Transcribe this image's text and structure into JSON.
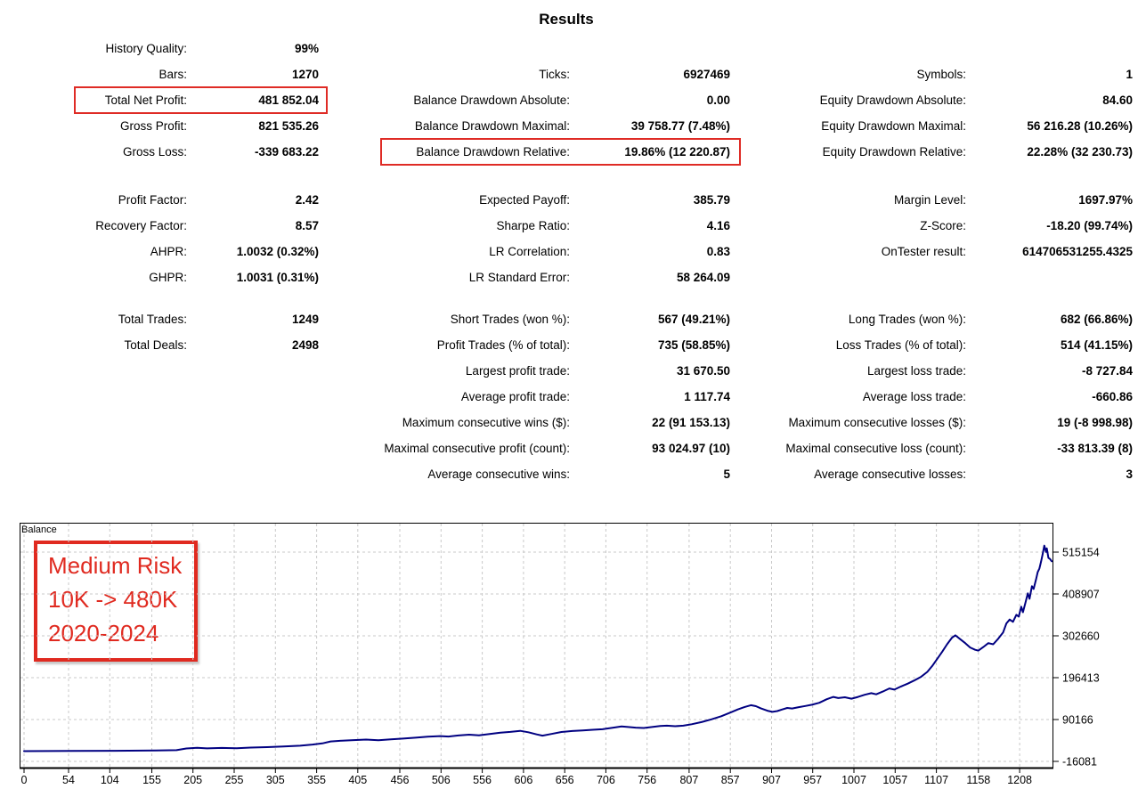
{
  "title": "Results",
  "accent_red": "#DF2B25",
  "stats": {
    "blocks": [
      [
        [
          {
            "label": "History Quality:",
            "value": "99%"
          },
          null,
          null
        ],
        [
          {
            "label": "Bars:",
            "value": "1270"
          },
          {
            "label": "Ticks:",
            "value": "6927469"
          },
          {
            "label": "Symbols:",
            "value": "1"
          }
        ],
        [
          {
            "label": "Total Net Profit:",
            "value": "481 852.04",
            "highlight": true
          },
          {
            "label": "Balance Drawdown Absolute:",
            "value": "0.00"
          },
          {
            "label": "Equity Drawdown Absolute:",
            "value": "84.60"
          }
        ],
        [
          {
            "label": "Gross Profit:",
            "value": "821 535.26"
          },
          {
            "label": "Balance Drawdown Maximal:",
            "value": "39 758.77 (7.48%)"
          },
          {
            "label": "Equity Drawdown Maximal:",
            "value": "56 216.28 (10.26%)"
          }
        ],
        [
          {
            "label": "Gross Loss:",
            "value": "-339 683.22"
          },
          {
            "label": "Balance Drawdown Relative:",
            "value": "19.86% (12 220.87)",
            "highlight": true
          },
          {
            "label": "Equity Drawdown Relative:",
            "value": "22.28% (32 230.73)"
          }
        ]
      ],
      [
        [
          {
            "label": "Profit Factor:",
            "value": "2.42"
          },
          {
            "label": "Expected Payoff:",
            "value": "385.79"
          },
          {
            "label": "Margin Level:",
            "value": "1697.97%"
          }
        ],
        [
          {
            "label": "Recovery Factor:",
            "value": "8.57"
          },
          {
            "label": "Sharpe Ratio:",
            "value": "4.16"
          },
          {
            "label": "Z-Score:",
            "value": "-18.20 (99.74%)"
          }
        ],
        [
          {
            "label": "AHPR:",
            "value": "1.0032 (0.32%)"
          },
          {
            "label": "LR Correlation:",
            "value": "0.83"
          },
          {
            "label": "OnTester result:",
            "value": "614706531255.4325"
          }
        ],
        [
          {
            "label": "GHPR:",
            "value": "1.0031 (0.31%)"
          },
          {
            "label": "LR Standard Error:",
            "value": "58 264.09"
          },
          null
        ]
      ],
      [
        [
          {
            "label": "Total Trades:",
            "value": "1249"
          },
          {
            "label": "Short Trades (won %):",
            "value": "567 (49.21%)"
          },
          {
            "label": "Long Trades (won %):",
            "value": "682 (66.86%)"
          }
        ],
        [
          {
            "label": "Total Deals:",
            "value": "2498"
          },
          {
            "label": "Profit Trades (% of total):",
            "value": "735 (58.85%)"
          },
          {
            "label": "Loss Trades (% of total):",
            "value": "514 (41.15%)"
          }
        ],
        [
          null,
          {
            "label": "Largest profit trade:",
            "value": "31 670.50"
          },
          {
            "label": "Largest loss trade:",
            "value": "-8 727.84"
          }
        ],
        [
          null,
          {
            "label": "Average profit trade:",
            "value": "1 117.74"
          },
          {
            "label": "Average loss trade:",
            "value": "-660.86"
          }
        ],
        [
          null,
          {
            "label": "Maximum consecutive wins ($):",
            "value": "22 (91 153.13)"
          },
          {
            "label": "Maximum consecutive losses ($):",
            "value": "19 (-8 998.98)"
          }
        ],
        [
          null,
          {
            "label": "Maximal consecutive profit (count):",
            "value": "93 024.97 (10)"
          },
          {
            "label": "Maximal consecutive loss (count):",
            "value": "-33 813.39 (8)"
          }
        ],
        [
          null,
          {
            "label": "Average consecutive wins:",
            "value": "5"
          },
          {
            "label": "Average consecutive losses:",
            "value": "3"
          }
        ]
      ]
    ]
  },
  "chart_data": {
    "type": "line",
    "title": "Balance",
    "xlabel": "",
    "ylabel": "",
    "grid": "dashed",
    "x_range": [
      0,
      1249
    ],
    "x_ticks": [
      0,
      54,
      104,
      155,
      205,
      255,
      305,
      355,
      405,
      456,
      506,
      556,
      606,
      656,
      706,
      756,
      807,
      857,
      907,
      957,
      1007,
      1057,
      1107,
      1158,
      1208
    ],
    "y_ticks": [
      515154,
      408907,
      302660,
      196413,
      90166,
      -16081
    ],
    "series": [
      {
        "name": "Balance",
        "color": "#000081",
        "points": [
          [
            0,
            10000
          ],
          [
            60,
            10300
          ],
          [
            110,
            10800
          ],
          [
            160,
            11600
          ],
          [
            185,
            12400
          ],
          [
            197,
            16800
          ],
          [
            210,
            18300
          ],
          [
            222,
            16900
          ],
          [
            240,
            18100
          ],
          [
            258,
            17300
          ],
          [
            275,
            18900
          ],
          [
            295,
            20000
          ],
          [
            315,
            21800
          ],
          [
            335,
            23800
          ],
          [
            350,
            26600
          ],
          [
            362,
            29600
          ],
          [
            372,
            34600
          ],
          [
            386,
            36600
          ],
          [
            400,
            37900
          ],
          [
            415,
            39200
          ],
          [
            430,
            37600
          ],
          [
            445,
            39700
          ],
          [
            460,
            41700
          ],
          [
            475,
            44100
          ],
          [
            490,
            46600
          ],
          [
            505,
            48100
          ],
          [
            515,
            47100
          ],
          [
            527,
            49700
          ],
          [
            540,
            51700
          ],
          [
            552,
            50100
          ],
          [
            565,
            53600
          ],
          [
            578,
            56600
          ],
          [
            590,
            58700
          ],
          [
            602,
            61500
          ],
          [
            612,
            57900
          ],
          [
            622,
            52400
          ],
          [
            629,
            49300
          ],
          [
            640,
            53600
          ],
          [
            652,
            58600
          ],
          [
            665,
            61100
          ],
          [
            678,
            62600
          ],
          [
            690,
            64100
          ],
          [
            702,
            65600
          ],
          [
            715,
            69600
          ],
          [
            725,
            72600
          ],
          [
            733,
            71100
          ],
          [
            742,
            69600
          ],
          [
            752,
            68600
          ],
          [
            762,
            71100
          ],
          [
            772,
            73600
          ],
          [
            780,
            74600
          ],
          [
            790,
            73100
          ],
          [
            800,
            74600
          ],
          [
            810,
            78100
          ],
          [
            822,
            83600
          ],
          [
            834,
            90600
          ],
          [
            846,
            98600
          ],
          [
            858,
            108600
          ],
          [
            866,
            115600
          ],
          [
            874,
            121600
          ],
          [
            882,
            126600
          ],
          [
            888,
            124100
          ],
          [
            894,
            118600
          ],
          [
            902,
            112600
          ],
          [
            908,
            109600
          ],
          [
            914,
            111600
          ],
          [
            920,
            115600
          ],
          [
            926,
            119600
          ],
          [
            932,
            118100
          ],
          [
            940,
            121600
          ],
          [
            948,
            124600
          ],
          [
            956,
            127600
          ],
          [
            965,
            132600
          ],
          [
            974,
            141600
          ],
          [
            982,
            147600
          ],
          [
            988,
            144600
          ],
          [
            996,
            146600
          ],
          [
            1004,
            143100
          ],
          [
            1012,
            147600
          ],
          [
            1020,
            153100
          ],
          [
            1028,
            157100
          ],
          [
            1034,
            154100
          ],
          [
            1042,
            161100
          ],
          [
            1050,
            169100
          ],
          [
            1056,
            166100
          ],
          [
            1064,
            174100
          ],
          [
            1072,
            181100
          ],
          [
            1080,
            189100
          ],
          [
            1088,
            198100
          ],
          [
            1096,
            211100
          ],
          [
            1102,
            226100
          ],
          [
            1108,
            244100
          ],
          [
            1114,
            262100
          ],
          [
            1120,
            281100
          ],
          [
            1126,
            298100
          ],
          [
            1130,
            304100
          ],
          [
            1136,
            294100
          ],
          [
            1142,
            284100
          ],
          [
            1148,
            273100
          ],
          [
            1154,
            267100
          ],
          [
            1158,
            265100
          ],
          [
            1164,
            274100
          ],
          [
            1170,
            284100
          ],
          [
            1176,
            281100
          ],
          [
            1182,
            295100
          ],
          [
            1188,
            311100
          ],
          [
            1192,
            334100
          ],
          [
            1196,
            344100
          ],
          [
            1200,
            338100
          ],
          [
            1204,
            356100
          ],
          [
            1207,
            351600
          ],
          [
            1210,
            376600
          ],
          [
            1212,
            362600
          ],
          [
            1215,
            385600
          ],
          [
            1218,
            410600
          ],
          [
            1220,
            396600
          ],
          [
            1223,
            428600
          ],
          [
            1225,
            421600
          ],
          [
            1228,
            446600
          ],
          [
            1230,
            464600
          ],
          [
            1232,
            473600
          ],
          [
            1234,
            490600
          ],
          [
            1236,
            510600
          ],
          [
            1238,
            531600
          ],
          [
            1240,
            515600
          ],
          [
            1241,
            524600
          ],
          [
            1243,
            500600
          ],
          [
            1245,
            497600
          ],
          [
            1247,
            491852
          ]
        ]
      }
    ],
    "annotation": {
      "lines": [
        "Medium Risk",
        "10K -> 480K",
        "2020-2024"
      ],
      "color": "#E02A20"
    }
  }
}
